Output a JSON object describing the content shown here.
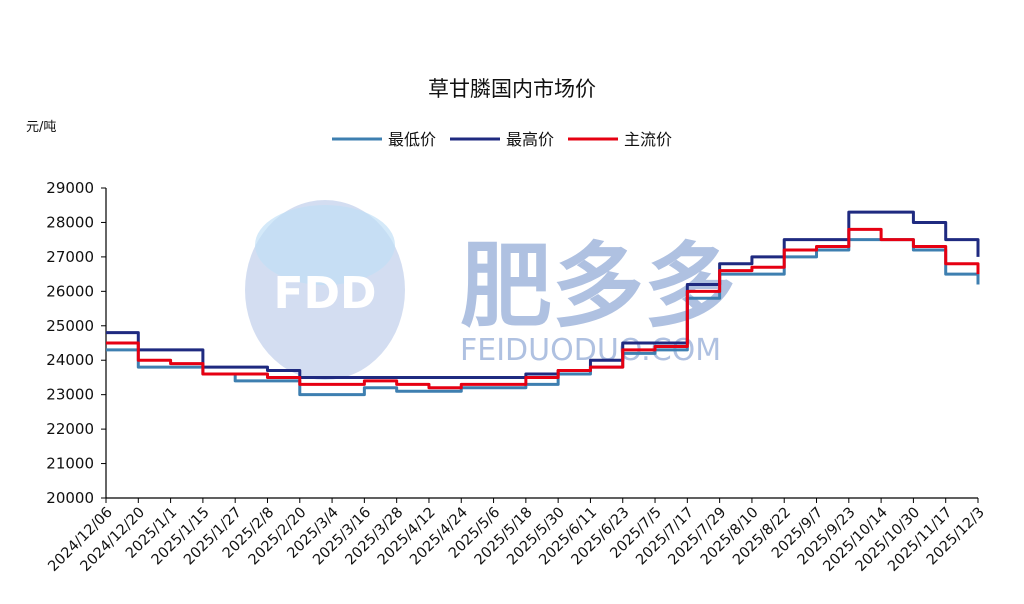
{
  "chart_data": {
    "type": "line",
    "title": "草甘膦国内市场价",
    "unit": "元/吨",
    "ylim": [
      20000,
      29000
    ],
    "yticks": [
      20000,
      21000,
      22000,
      23000,
      24000,
      25000,
      26000,
      27000,
      28000,
      29000
    ],
    "x": [
      "2024/12/06",
      "2024/12/20",
      "2025/1/1",
      "2025/1/15",
      "2025/1/27",
      "2025/2/8",
      "2025/2/20",
      "2025/3/4",
      "2025/3/16",
      "2025/3/28",
      "2025/4/12",
      "2025/4/24",
      "2025/5/6",
      "2025/5/18",
      "2025/5/30",
      "2025/6/11",
      "2025/6/23",
      "2025/7/5",
      "2025/7/17",
      "2025/7/29",
      "2025/8/10",
      "2025/8/22",
      "2025/9/7",
      "2025/9/23",
      "2025/10/14",
      "2025/10/30",
      "2025/11/17",
      "2025/12/3"
    ],
    "series": [
      {
        "name": "最低价",
        "color": "#3e7fb0",
        "values": [
          24300,
          23800,
          23800,
          23600,
          23400,
          23400,
          23000,
          23000,
          23200,
          23100,
          23100,
          23200,
          23200,
          23300,
          23600,
          23800,
          24200,
          24300,
          25800,
          26500,
          26500,
          27000,
          27200,
          27500,
          27500,
          27200,
          26500,
          26200
        ]
      },
      {
        "name": "最高价",
        "color": "#1f2a80",
        "values": [
          24800,
          24300,
          24300,
          23800,
          23800,
          23700,
          23500,
          23500,
          23500,
          23500,
          23500,
          23500,
          23500,
          23600,
          23700,
          24000,
          24500,
          24500,
          26200,
          26800,
          27000,
          27500,
          27500,
          28300,
          28300,
          28000,
          27500,
          27000
        ]
      },
      {
        "name": "主流价",
        "color": "#e60012",
        "values": [
          24500,
          24000,
          23900,
          23600,
          23600,
          23500,
          23300,
          23300,
          23400,
          23300,
          23200,
          23300,
          23300,
          23500,
          23700,
          23800,
          24300,
          24400,
          26000,
          26600,
          26700,
          27200,
          27300,
          27800,
          27500,
          27300,
          26800,
          26500
        ]
      }
    ]
  },
  "watermark": {
    "logo": "FDD",
    "brand": "肥多多",
    "url": "FEIDUODUO.COM"
  }
}
